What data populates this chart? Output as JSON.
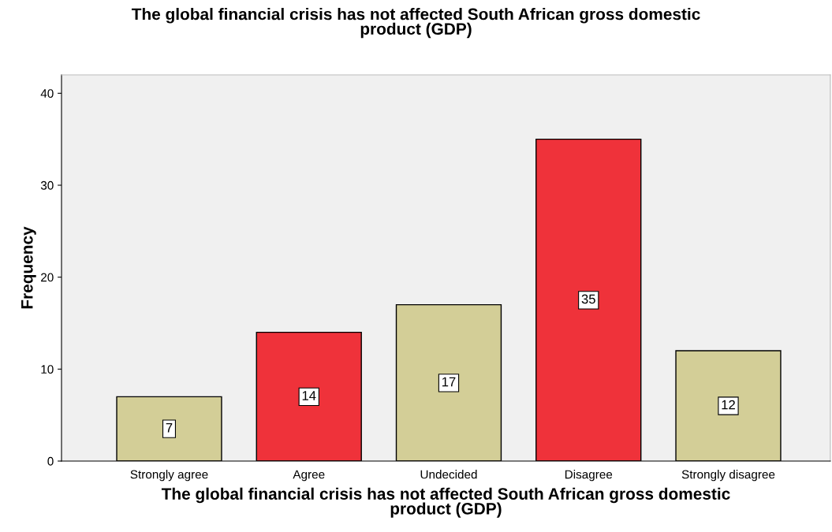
{
  "chart_data": {
    "type": "bar",
    "title": "The global financial crisis has not affected South African gross domestic\nproduct (GDP)",
    "xlabel": "The global financial crisis has not affected South African gross domestic\nproduct (GDP)",
    "ylabel": "Frequency",
    "categories": [
      "Strongly agree",
      "Agree",
      "Undecided",
      "Disagree",
      "Strongly disagree"
    ],
    "values": [
      7,
      14,
      17,
      35,
      12
    ],
    "colors": [
      "#d3ce97",
      "#ef323a",
      "#d3ce97",
      "#ef323a",
      "#d3ce97"
    ],
    "ylim": [
      0,
      42
    ],
    "yticks": [
      0,
      10,
      20,
      30,
      40
    ],
    "data_labels": true,
    "grid": false,
    "legend": false
  }
}
